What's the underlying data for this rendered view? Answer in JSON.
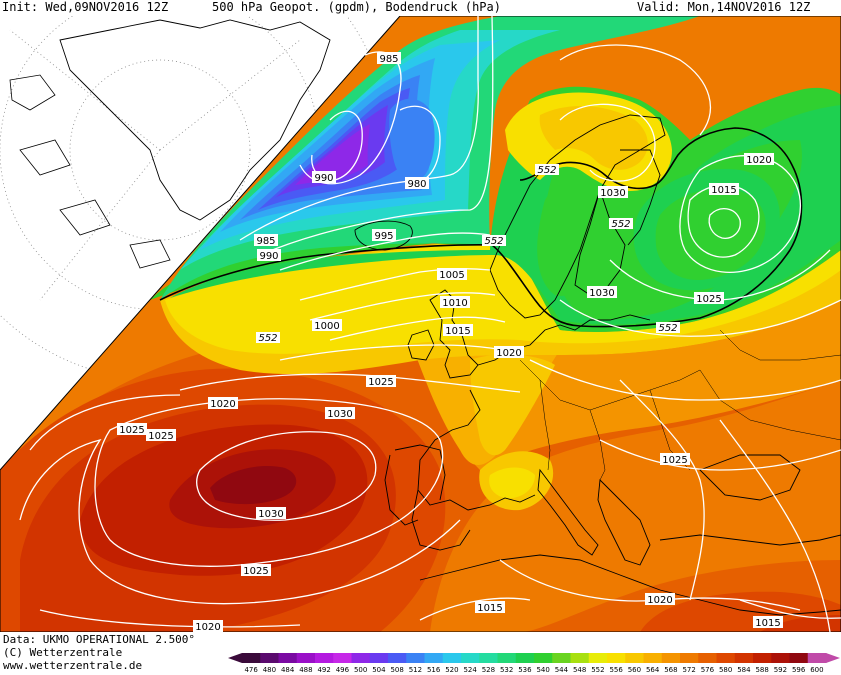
{
  "header": {
    "init": "Init: Wed,09NOV2016 12Z",
    "title": "500 hPa Geopot. (gpdm), Bodendruck (hPa)",
    "valid": "Valid: Mon,14NOV2016 12Z"
  },
  "footer": {
    "data_line": "Data: UKMO OPERATIONAL 2.500°",
    "copyright": "(C) Wetterzentrale",
    "website": "www.wetterzentrale.de"
  },
  "geopotential_label": "552",
  "isobar_labels": {
    "l985_top": "985",
    "l990_a": "990",
    "l980": "980",
    "l985_left": "985",
    "l990_left": "990",
    "l995": "995",
    "l1005": "1005",
    "l1010": "1010",
    "l1015_uk": "1015",
    "l1000": "1000",
    "l1020_uk": "1020",
    "l1025_atl": "1025",
    "l1020_atl": "1020",
    "l1025_w1": "1025",
    "l1025_w2": "1025",
    "l1030_high": "1030",
    "l1030_low": "1030",
    "l1025_s": "1025",
    "l1020_s": "1020",
    "l1030_scand": "1030",
    "l1030_ne": "1030",
    "l1020_e": "1020",
    "l1015_e": "1015",
    "l1025_e": "1025",
    "l1025_balk": "1025",
    "l1015_med": "1015",
    "l1020_med": "1020",
    "l1015_se": "1015"
  },
  "colorbar": {
    "ticks": [
      "476",
      "480",
      "484",
      "488",
      "492",
      "496",
      "500",
      "504",
      "508",
      "512",
      "516",
      "520",
      "524",
      "528",
      "532",
      "536",
      "540",
      "544",
      "548",
      "552",
      "556",
      "560",
      "564",
      "568",
      "572",
      "576",
      "580",
      "584",
      "588",
      "592",
      "596",
      "600"
    ],
    "colors": [
      "#3a0a3a",
      "#5a0a6e",
      "#7a0aa2",
      "#9a10c8",
      "#b41ae0",
      "#c628e8",
      "#8e28e8",
      "#6a3af0",
      "#4a5af4",
      "#3a82f4",
      "#32a8f4",
      "#2ac8ec",
      "#26d8c8",
      "#24dca0",
      "#22d878",
      "#1ed050",
      "#30d030",
      "#6ad420",
      "#a8e010",
      "#e8ec08",
      "#f8e000",
      "#f8c800",
      "#f8b000",
      "#f49400",
      "#ee7a00",
      "#e66000",
      "#de4800",
      "#d23400",
      "#c22000",
      "#ac1208",
      "#900810",
      "#c04aa8"
    ]
  }
}
